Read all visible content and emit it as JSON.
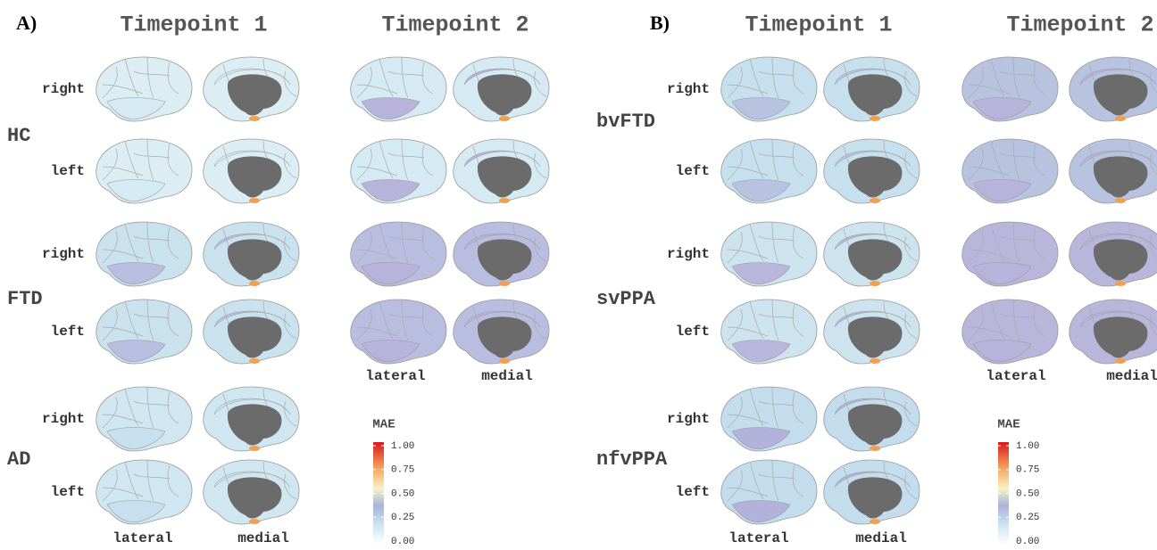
{
  "panels": [
    {
      "label": "A)",
      "columns": [
        "Timepoint 1",
        "Timepoint 2"
      ],
      "groups": [
        {
          "name": "HC",
          "rows": [
            "right",
            "left"
          ]
        },
        {
          "name": "FTD",
          "rows": [
            "right",
            "left"
          ]
        },
        {
          "name": "AD",
          "rows": [
            "right",
            "left"
          ]
        }
      ],
      "views": [
        "lateral",
        "medial"
      ],
      "colorbar": {
        "title": "MAE",
        "ticks": [
          {
            "value": 0,
            "label": "0.00"
          },
          {
            "value": 0.25,
            "label": "0.25"
          },
          {
            "value": 0.5,
            "label": "0.50"
          },
          {
            "value": 0.75,
            "label": "0.75"
          },
          {
            "value": 1,
            "label": "1.00"
          }
        ]
      }
    },
    {
      "label": "B)",
      "columns": [
        "Timepoint 1",
        "Timepoint 2"
      ],
      "groups": [
        {
          "name": "bvFTD",
          "rows": [
            "right",
            "left"
          ]
        },
        {
          "name": "svPPA",
          "rows": [
            "right",
            "left"
          ]
        },
        {
          "name": "nfvPPA",
          "rows": [
            "right",
            "left"
          ]
        }
      ],
      "views": [
        "lateral",
        "medial"
      ],
      "colorbar": {
        "title": "MAE",
        "ticks": [
          {
            "value": 0,
            "label": "0.00"
          },
          {
            "value": 0.25,
            "label": "0.25"
          },
          {
            "value": 0.5,
            "label": "0.50"
          },
          {
            "value": 0.75,
            "label": "0.75"
          },
          {
            "value": 1,
            "label": "1.00"
          }
        ]
      }
    }
  ]
}
